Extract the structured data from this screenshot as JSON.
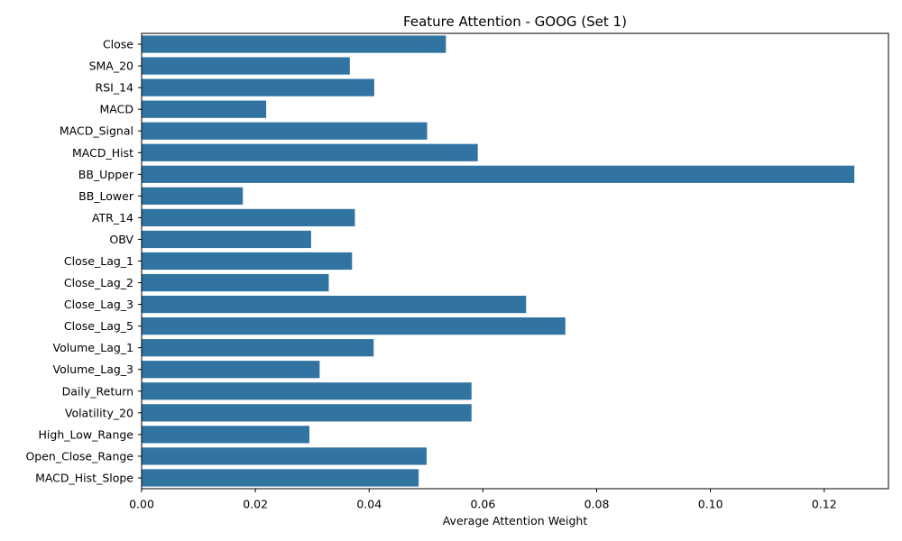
{
  "chart_data": {
    "type": "bar",
    "orientation": "horizontal",
    "title": "Feature Attention - GOOG (Set 1)",
    "xlabel": "Average Attention Weight",
    "ylabel": "",
    "xlim": [
      0,
      0.1313
    ],
    "xticks": [
      0.0,
      0.02,
      0.04,
      0.06,
      0.08,
      0.1,
      0.12
    ],
    "xtick_labels": [
      "0.00",
      "0.02",
      "0.04",
      "0.06",
      "0.08",
      "0.10",
      "0.12"
    ],
    "grid": false,
    "bar_color": "#3274a1",
    "categories": [
      "Close",
      "SMA_20",
      "RSI_14",
      "MACD",
      "MACD_Signal",
      "MACD_Hist",
      "BB_Upper",
      "BB_Lower",
      "ATR_14",
      "OBV",
      "Close_Lag_1",
      "Close_Lag_2",
      "Close_Lag_3",
      "Close_Lag_5",
      "Volume_Lag_1",
      "Volume_Lag_3",
      "Daily_Return",
      "Volatility_20",
      "High_Low_Range",
      "Open_Close_Range",
      "MACD_Hist_Slope"
    ],
    "values": [
      0.0535,
      0.0366,
      0.0409,
      0.0219,
      0.0502,
      0.0591,
      0.1253,
      0.0178,
      0.0375,
      0.0298,
      0.037,
      0.0329,
      0.0676,
      0.0745,
      0.0408,
      0.0313,
      0.058,
      0.058,
      0.0295,
      0.0501,
      0.0487
    ]
  }
}
